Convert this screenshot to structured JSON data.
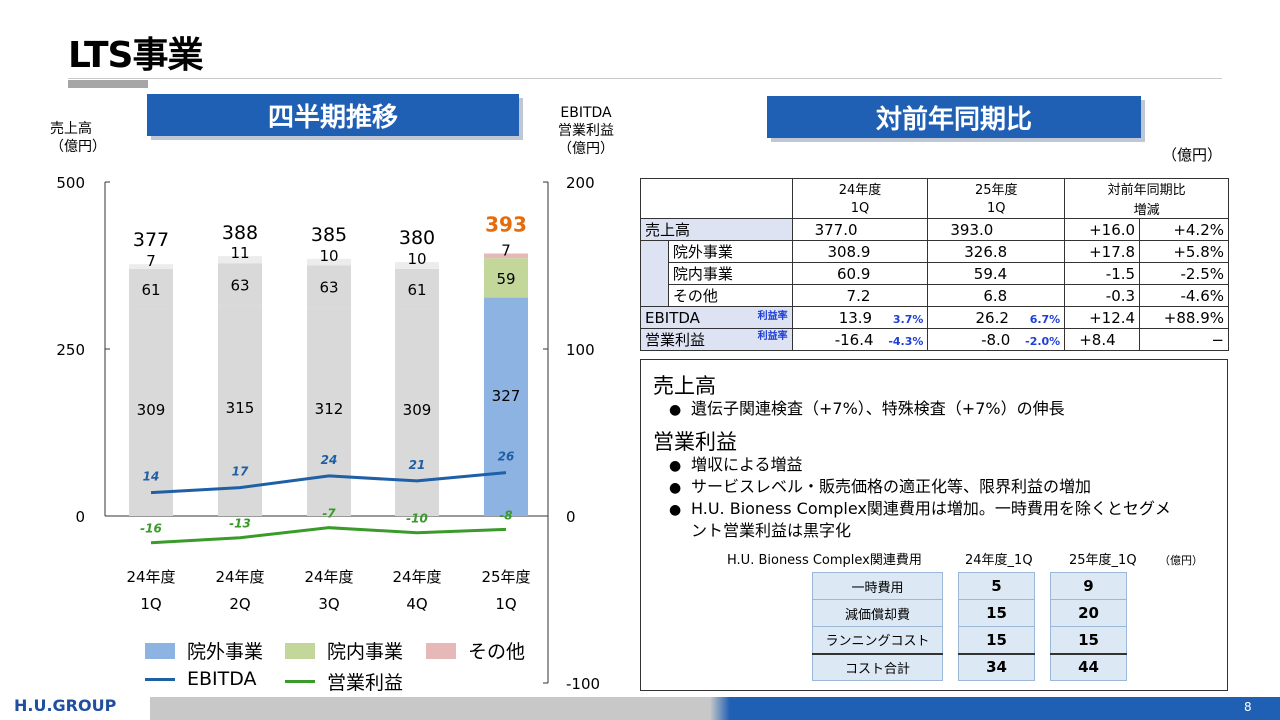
{
  "title": "LTS事業",
  "left_banner": "四半期推移",
  "right_banner": "対前年同期比",
  "left_axis_title": [
    "売上高",
    "（億円）"
  ],
  "right_axis_title": [
    "EBITDA",
    "営業利益",
    "（億円）"
  ],
  "unit_right": "（億円）",
  "chart_data": {
    "type": "bar",
    "stacked": true,
    "categories": [
      [
        "24年度",
        "1Q"
      ],
      [
        "24年度",
        "2Q"
      ],
      [
        "24年度",
        "3Q"
      ],
      [
        "24年度",
        "4Q"
      ],
      [
        "25年度",
        "1Q"
      ]
    ],
    "series": [
      {
        "name": "院外事業",
        "values": [
          309,
          315,
          312,
          309,
          327
        ],
        "color_current": "#8db3e2",
        "color_past": "#d9d9d9"
      },
      {
        "name": "院内事業",
        "values": [
          61,
          63,
          63,
          61,
          59
        ],
        "color_current": "#c4d79b",
        "color_past": "#d9d9d9"
      },
      {
        "name": "その他",
        "values": [
          7,
          11,
          10,
          10,
          7
        ],
        "color_current": "#e6b8b7",
        "color_past": "#ececec"
      }
    ],
    "totals": [
      377,
      388,
      385,
      380,
      393
    ],
    "total_label_labels": [
      "377",
      "388",
      "385",
      "380",
      "393"
    ],
    "highlight_color": "#e46c0a",
    "lines": [
      {
        "name": "EBITDA",
        "values": [
          14,
          17,
          24,
          21,
          26
        ],
        "color": "#1f5fa6",
        "axis": "right"
      },
      {
        "name": "営業利益",
        "values": [
          -16,
          -13,
          -7,
          -10,
          -8
        ],
        "color": "#3a9a2a",
        "axis": "right"
      }
    ],
    "left_ticks": [
      "500",
      "250",
      "0"
    ],
    "right_ticks": [
      "200",
      "100",
      "0",
      "-100"
    ],
    "ylim_left": [
      -250,
      500
    ],
    "ylim_right": [
      -100,
      200
    ]
  },
  "legend": {
    "gaiai": "院外事業",
    "innai": "院内事業",
    "other": "その他",
    "ebitda": "EBITDA",
    "opinc": "営業利益"
  },
  "table": {
    "head": {
      "c1a": "24年度",
      "c1b": "1Q",
      "c2a": "25年度",
      "c2b": "1Q",
      "c3a": "対前年同期比",
      "c3b": "増減"
    },
    "rows": [
      {
        "label": "売上高",
        "v24": "377.0",
        "v25": "393.0",
        "diff": "+16.0",
        "pct": "+4.2%"
      },
      {
        "label": "院外事業",
        "v24": "308.9",
        "v25": "326.8",
        "diff": "+17.8",
        "pct": "+5.8%"
      },
      {
        "label": "院内事業",
        "v24": "60.9",
        "v25": "59.4",
        "diff": "-1.5",
        "pct": "-2.5%"
      },
      {
        "label": "その他",
        "v24": "7.2",
        "v25": "6.8",
        "diff": "-0.3",
        "pct": "-4.6%"
      },
      {
        "label": "EBITDA",
        "tag": "利益率",
        "v24": "13.9",
        "r24": "3.7%",
        "v25": "26.2",
        "r25": "6.7%",
        "diff": "+12.4",
        "pct": "+88.9%"
      },
      {
        "label": "営業利益",
        "tag": "利益率",
        "v24": "-16.4",
        "r24": "-4.3%",
        "v25": "-8.0",
        "r25": "-2.0%",
        "diff": "+8.4",
        "pct": "−"
      }
    ]
  },
  "notes": {
    "h1": "売上高",
    "b1": "遺伝子関連検査（+7%）、特殊検査（+7%）の伸長",
    "h2": "営業利益",
    "b2": "増収による増益",
    "b3": "サービスレベル・販売価格の適正化等、限界利益の増加",
    "b4a": "H.U. Bioness Complex関連費用は増加。一時費用を除くとセグメ",
    "b4b": "ント営業利益は黒字化",
    "bullet": "●"
  },
  "cost_table": {
    "title": "H.U. Bioness Complex関連費用",
    "col1": "24年度_1Q",
    "col2": "25年度_1Q",
    "unit": "（億円）",
    "rows": [
      {
        "label": "一時費用",
        "v1": "5",
        "v2": "9"
      },
      {
        "label": "減価償却費",
        "v1": "15",
        "v2": "20"
      },
      {
        "label": "ランニングコスト",
        "v1": "15",
        "v2": "15"
      },
      {
        "label": "コスト合計",
        "v1": "34",
        "v2": "44"
      }
    ]
  },
  "footer": {
    "logo": "H.U.GROUP",
    "page": "8"
  }
}
